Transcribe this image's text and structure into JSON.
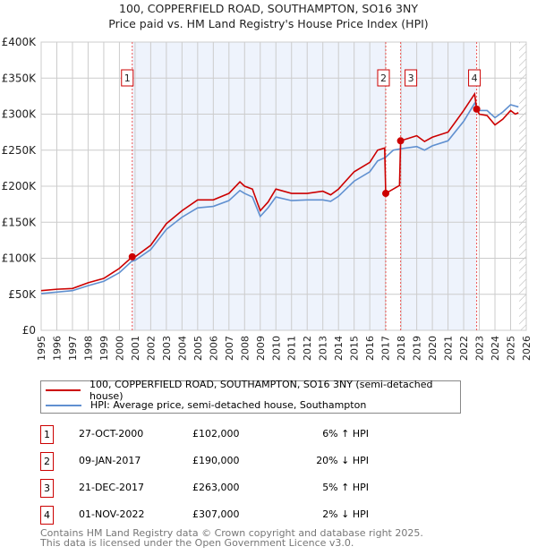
{
  "title": "100, COPPERFIELD ROAD, SOUTHAMPTON, SO16 3NY",
  "subtitle": "Price paid vs. HM Land Registry's House Price Index (HPI)",
  "colors": {
    "property": "#cc0000",
    "hpi": "#6090d0",
    "shade": "#eef3fc"
  },
  "chart_data": {
    "type": "line",
    "xlim": [
      1995,
      2026
    ],
    "ylim": [
      0,
      400000
    ],
    "yticks": [
      {
        "v": 0,
        "l": "£0"
      },
      {
        "v": 50000,
        "l": "£50K"
      },
      {
        "v": 100000,
        "l": "£100K"
      },
      {
        "v": 150000,
        "l": "£150K"
      },
      {
        "v": 200000,
        "l": "£200K"
      },
      {
        "v": 250000,
        "l": "£250K"
      },
      {
        "v": 300000,
        "l": "£300K"
      },
      {
        "v": 350000,
        "l": "£350K"
      },
      {
        "v": 400000,
        "l": "£400K"
      }
    ],
    "xticks": [
      "1995",
      "1996",
      "1997",
      "1998",
      "1999",
      "2000",
      "2001",
      "2002",
      "2003",
      "2004",
      "2005",
      "2006",
      "2007",
      "2008",
      "2009",
      "2010",
      "2011",
      "2012",
      "2013",
      "2014",
      "2015",
      "2016",
      "2017",
      "2018",
      "2019",
      "2020",
      "2021",
      "2022",
      "2023",
      "2024",
      "2025",
      "2026"
    ],
    "series": [
      {
        "name": "100, COPPERFIELD ROAD, SOUTHAMPTON, SO16 3NY (semi-detached house)",
        "points": [
          [
            1995,
            55
          ],
          [
            1996,
            57
          ],
          [
            1997,
            58
          ],
          [
            1998,
            66
          ],
          [
            1999,
            72
          ],
          [
            2000,
            86
          ],
          [
            2000.82,
            102
          ],
          [
            2001,
            102
          ],
          [
            2002,
            118
          ],
          [
            2003,
            148
          ],
          [
            2004,
            166
          ],
          [
            2005,
            181
          ],
          [
            2006,
            181
          ],
          [
            2007,
            190
          ],
          [
            2007.7,
            206
          ],
          [
            2008,
            200
          ],
          [
            2008.5,
            196
          ],
          [
            2009,
            166
          ],
          [
            2009.5,
            178
          ],
          [
            2010,
            196
          ],
          [
            2011,
            190
          ],
          [
            2012,
            190
          ],
          [
            2013,
            193
          ],
          [
            2013.5,
            188
          ],
          [
            2014,
            196
          ],
          [
            2015,
            220
          ],
          [
            2016,
            233
          ],
          [
            2016.5,
            250
          ],
          [
            2016.95,
            253
          ],
          [
            2017.02,
            190
          ],
          [
            2017.9,
            201
          ],
          [
            2017.97,
            263
          ],
          [
            2019,
            270
          ],
          [
            2019.5,
            262
          ],
          [
            2020,
            268
          ],
          [
            2021,
            275
          ],
          [
            2022,
            305
          ],
          [
            2022.7,
            328
          ],
          [
            2022.83,
            307
          ],
          [
            2023,
            300
          ],
          [
            2023.5,
            298
          ],
          [
            2024,
            285
          ],
          [
            2024.5,
            293
          ],
          [
            2025,
            305
          ],
          [
            2025.3,
            300
          ],
          [
            2025.5,
            302
          ]
        ]
      },
      {
        "name": "HPI: Average price, semi-detached house, Southampton",
        "points": [
          [
            1995,
            51
          ],
          [
            1996,
            53
          ],
          [
            1997,
            55
          ],
          [
            1998,
            62
          ],
          [
            1999,
            68
          ],
          [
            2000,
            80
          ],
          [
            2000.8,
            96
          ],
          [
            2001,
            97
          ],
          [
            2002,
            112
          ],
          [
            2003,
            140
          ],
          [
            2004,
            157
          ],
          [
            2005,
            170
          ],
          [
            2006,
            172
          ],
          [
            2007,
            180
          ],
          [
            2007.7,
            194
          ],
          [
            2008,
            190
          ],
          [
            2008.5,
            185
          ],
          [
            2009,
            158
          ],
          [
            2009.5,
            170
          ],
          [
            2010,
            185
          ],
          [
            2011,
            180
          ],
          [
            2012,
            181
          ],
          [
            2013,
            181
          ],
          [
            2013.5,
            179
          ],
          [
            2014,
            186
          ],
          [
            2015,
            207
          ],
          [
            2016,
            220
          ],
          [
            2016.5,
            235
          ],
          [
            2017,
            240
          ],
          [
            2017.5,
            250
          ],
          [
            2018,
            252
          ],
          [
            2019,
            255
          ],
          [
            2019.5,
            250
          ],
          [
            2020,
            256
          ],
          [
            2021,
            263
          ],
          [
            2022,
            290
          ],
          [
            2022.7,
            315
          ],
          [
            2023,
            305
          ],
          [
            2023.5,
            305
          ],
          [
            2024,
            295
          ],
          [
            2024.5,
            303
          ],
          [
            2025,
            313
          ],
          [
            2025.5,
            310
          ]
        ]
      }
    ],
    "sales": [
      {
        "n": "1",
        "x": 2000.82,
        "y": 102
      },
      {
        "n": "2",
        "x": 2017.02,
        "y": 190
      },
      {
        "n": "3",
        "x": 2017.97,
        "y": 263
      },
      {
        "n": "4",
        "x": 2022.83,
        "y": 307
      }
    ],
    "forecast_from": 2025.55
  },
  "legend": [
    "100, COPPERFIELD ROAD, SOUTHAMPTON, SO16 3NY (semi-detached house)",
    "HPI: Average price, semi-detached house, Southampton"
  ],
  "table": [
    {
      "n": "1",
      "date": "27-OCT-2000",
      "price": "£102,000",
      "hpi": "6% ↑ HPI"
    },
    {
      "n": "2",
      "date": "09-JAN-2017",
      "price": "£190,000",
      "hpi": "20% ↓ HPI"
    },
    {
      "n": "3",
      "date": "21-DEC-2017",
      "price": "£263,000",
      "hpi": "5% ↑ HPI"
    },
    {
      "n": "4",
      "date": "01-NOV-2022",
      "price": "£307,000",
      "hpi": "2% ↓ HPI"
    }
  ],
  "footer": [
    "Contains HM Land Registry data © Crown copyright and database right 2025.",
    "This data is licensed under the Open Government Licence v3.0."
  ]
}
